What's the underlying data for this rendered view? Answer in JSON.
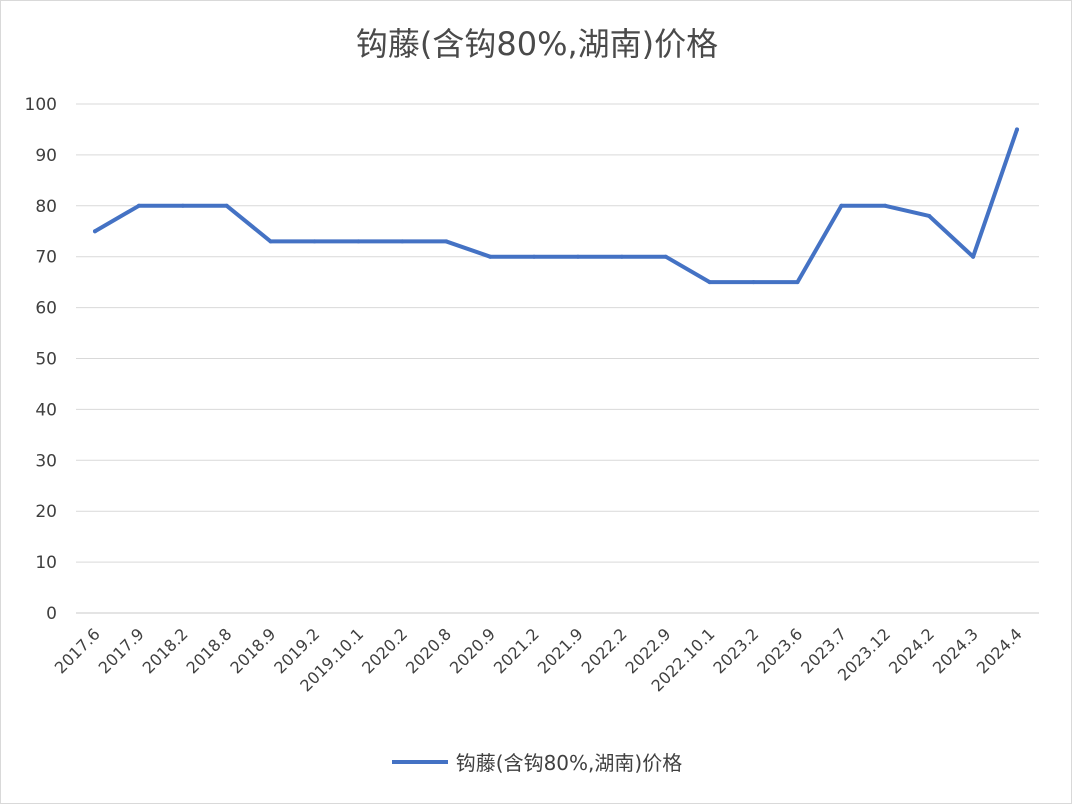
{
  "chart_data": {
    "type": "line",
    "title": "钩藤(含钩80%,湖南)价格",
    "xlabel": "",
    "ylabel": "",
    "ylim": [
      0,
      100
    ],
    "yticks": [
      0,
      10,
      20,
      30,
      40,
      50,
      60,
      70,
      80,
      90,
      100
    ],
    "grid": true,
    "legend_position": "bottom",
    "categories": [
      "2017.6",
      "2017.9",
      "2018.2",
      "2018.8",
      "2018.9",
      "2019.2",
      "2019.10.1",
      "2020.2",
      "2020.8",
      "2020.9",
      "2021.2",
      "2021.9",
      "2022.2",
      "2022.9",
      "2022.10.1",
      "2023.2",
      "2023.6",
      "2023.7",
      "2023.12",
      "2024.2",
      "2024.3",
      "2024.4"
    ],
    "series": [
      {
        "name": "钩藤(含钩80%,湖南)价格",
        "color": "#4472c4",
        "values": [
          75,
          80,
          80,
          80,
          73,
          73,
          73,
          73,
          73,
          70,
          70,
          70,
          70,
          70,
          65,
          65,
          65,
          80,
          80,
          78,
          70,
          95
        ]
      }
    ]
  }
}
